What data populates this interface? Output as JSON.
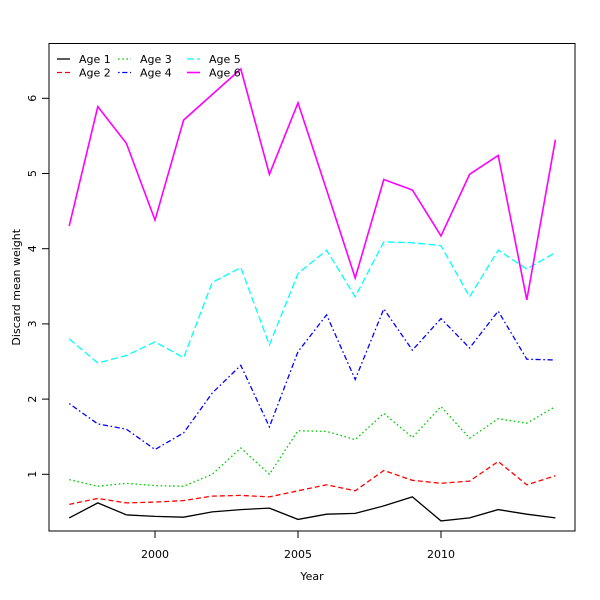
{
  "figure": {
    "xlabel": "Year",
    "ylabel": "Discard mean weight"
  },
  "chart_data": {
    "type": "line",
    "title": "",
    "xlabel": "Year",
    "ylabel": "Discard mean weight",
    "x": [
      1997,
      1998,
      1999,
      2000,
      2001,
      2002,
      2003,
      2004,
      2005,
      2006,
      2007,
      2008,
      2009,
      2010,
      2011,
      2012,
      2013,
      2014
    ],
    "xticks": [
      2000,
      2005,
      2010
    ],
    "yticks": [
      1,
      2,
      3,
      4,
      5,
      6
    ],
    "xlim": [
      1996.3,
      2014.7
    ],
    "ylim": [
      0.15,
      6.7
    ],
    "grid": false,
    "legend_position": "top-left",
    "series": [
      {
        "name": "Age 1",
        "color": "#000000",
        "linestyle": "solid",
        "values": [
          0.42,
          0.62,
          0.46,
          0.44,
          0.43,
          0.5,
          0.53,
          0.55,
          0.4,
          0.47,
          0.48,
          0.58,
          0.7,
          0.38,
          0.42,
          0.53,
          0.47,
          0.42
        ]
      },
      {
        "name": "Age 2",
        "color": "#FF0000",
        "linestyle": "dashed",
        "values": [
          0.6,
          0.68,
          0.62,
          0.63,
          0.65,
          0.71,
          0.72,
          0.7,
          0.78,
          0.86,
          0.78,
          1.05,
          0.92,
          0.88,
          0.91,
          1.17,
          0.86,
          0.98
        ]
      },
      {
        "name": "Age 3",
        "color": "#00CD00",
        "linestyle": "dotted",
        "values": [
          0.93,
          0.84,
          0.88,
          0.85,
          0.84,
          1.0,
          1.35,
          1.0,
          1.58,
          1.57,
          1.46,
          1.81,
          1.49,
          1.9,
          1.48,
          1.74,
          1.68,
          1.9
        ]
      },
      {
        "name": "Age 4",
        "color": "#0000FF",
        "linestyle": "dashdot",
        "values": [
          1.94,
          1.67,
          1.6,
          1.33,
          1.55,
          2.08,
          2.45,
          1.63,
          2.63,
          3.12,
          2.26,
          3.2,
          2.65,
          3.07,
          2.68,
          3.17,
          2.53,
          2.52
        ]
      },
      {
        "name": "Age 5",
        "color": "#00FFFF",
        "linestyle": "longdash",
        "values": [
          2.8,
          2.48,
          2.58,
          2.76,
          2.55,
          3.55,
          3.75,
          2.72,
          3.67,
          3.98,
          3.36,
          4.09,
          4.08,
          4.04,
          3.36,
          3.98,
          3.73,
          3.95
        ]
      },
      {
        "name": "Age 6",
        "color": "#FF00FF",
        "linestyle": "solid",
        "values": [
          4.3,
          5.89,
          5.4,
          4.38,
          5.71,
          6.05,
          6.39,
          4.99,
          5.94,
          4.78,
          3.61,
          4.92,
          4.78,
          4.17,
          4.99,
          5.24,
          3.32,
          5.45
        ]
      }
    ]
  }
}
